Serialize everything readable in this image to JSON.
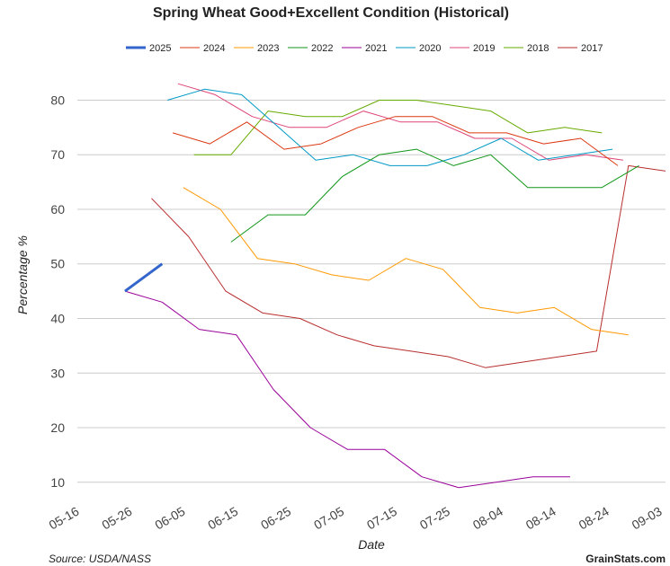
{
  "chart_data": {
    "type": "line",
    "title": "Spring Wheat Good+Excellent Condition (Historical)",
    "xlabel": "Date",
    "ylabel": "Percentage %",
    "ylim": [
      7,
      86
    ],
    "yticks": [
      10,
      20,
      30,
      40,
      50,
      60,
      70,
      80
    ],
    "xlim": [
      0,
      111
    ],
    "xticks": [
      {
        "label": "05-16",
        "day": 0
      },
      {
        "label": "05-26",
        "day": 10
      },
      {
        "label": "06-05",
        "day": 20
      },
      {
        "label": "06-15",
        "day": 30
      },
      {
        "label": "06-25",
        "day": 40
      },
      {
        "label": "07-05",
        "day": 50
      },
      {
        "label": "07-15",
        "day": 60
      },
      {
        "label": "07-25",
        "day": 70
      },
      {
        "label": "08-04",
        "day": 80
      },
      {
        "label": "08-14",
        "day": 90
      },
      {
        "label": "08-24",
        "day": 100
      },
      {
        "label": "09-03",
        "day": 110
      }
    ],
    "x_unit": "days since 05-16",
    "grid": true,
    "legend_position": "top",
    "series": [
      {
        "name": "2025",
        "color": "#3366cc",
        "width": 3,
        "points": [
          [
            9,
            45
          ],
          [
            16,
            50
          ]
        ]
      },
      {
        "name": "2024",
        "color": "#dc3912",
        "width": 1,
        "points": [
          [
            18,
            74
          ],
          [
            25,
            72
          ],
          [
            32,
            76
          ],
          [
            39,
            71
          ],
          [
            46,
            72
          ],
          [
            53,
            75
          ],
          [
            60,
            77
          ],
          [
            67,
            77
          ],
          [
            74,
            74
          ],
          [
            81,
            74
          ],
          [
            88,
            72
          ],
          [
            95,
            73
          ],
          [
            102,
            68
          ]
        ]
      },
      {
        "name": "2023",
        "color": "#ff9900",
        "width": 1,
        "points": [
          [
            20,
            64
          ],
          [
            27,
            60
          ],
          [
            34,
            51
          ],
          [
            41,
            50
          ],
          [
            48,
            48
          ],
          [
            55,
            47
          ],
          [
            62,
            51
          ],
          [
            69,
            49
          ],
          [
            76,
            42
          ],
          [
            83,
            41
          ],
          [
            90,
            42
          ],
          [
            97,
            38
          ],
          [
            104,
            37
          ]
        ]
      },
      {
        "name": "2022",
        "color": "#109618",
        "width": 1,
        "points": [
          [
            29,
            54
          ],
          [
            36,
            59
          ],
          [
            43,
            59
          ],
          [
            50,
            66
          ],
          [
            57,
            70
          ],
          [
            64,
            71
          ],
          [
            71,
            68
          ],
          [
            78,
            70
          ],
          [
            85,
            64
          ],
          [
            92,
            64
          ],
          [
            99,
            64
          ],
          [
            106,
            68
          ]
        ]
      },
      {
        "name": "2021",
        "color": "#990099",
        "width": 1,
        "points": [
          [
            9,
            45
          ],
          [
            16,
            43
          ],
          [
            23,
            38
          ],
          [
            30,
            37
          ],
          [
            37,
            27
          ],
          [
            44,
            20
          ],
          [
            51,
            16
          ],
          [
            58,
            16
          ],
          [
            65,
            11
          ],
          [
            72,
            9
          ],
          [
            79,
            10
          ],
          [
            86,
            11
          ],
          [
            93,
            11
          ]
        ]
      },
      {
        "name": "2020",
        "color": "#0099c6",
        "width": 1,
        "points": [
          [
            17,
            80
          ],
          [
            24,
            82
          ],
          [
            31,
            81
          ],
          [
            38,
            75
          ],
          [
            45,
            69
          ],
          [
            52,
            70
          ],
          [
            59,
            68
          ],
          [
            66,
            68
          ],
          [
            73,
            70
          ],
          [
            80,
            73
          ],
          [
            87,
            69
          ],
          [
            94,
            70
          ],
          [
            101,
            71
          ]
        ]
      },
      {
        "name": "2019",
        "color": "#dd4477",
        "width": 1,
        "points": [
          [
            19,
            83
          ],
          [
            26,
            81
          ],
          [
            33,
            77
          ],
          [
            40,
            75
          ],
          [
            47,
            75
          ],
          [
            54,
            78
          ],
          [
            61,
            76
          ],
          [
            68,
            76
          ],
          [
            75,
            73
          ],
          [
            82,
            73
          ],
          [
            89,
            69
          ],
          [
            96,
            70
          ],
          [
            103,
            69
          ]
        ]
      },
      {
        "name": "2018",
        "color": "#66aa00",
        "width": 1,
        "points": [
          [
            22,
            70
          ],
          [
            29,
            70
          ],
          [
            36,
            78
          ],
          [
            43,
            77
          ],
          [
            50,
            77
          ],
          [
            57,
            80
          ],
          [
            64,
            80
          ],
          [
            71,
            79
          ],
          [
            78,
            78
          ],
          [
            85,
            74
          ],
          [
            92,
            75
          ],
          [
            99,
            74
          ]
        ]
      },
      {
        "name": "2017",
        "color": "#b82e2e",
        "width": 1,
        "points": [
          [
            14,
            62
          ],
          [
            21,
            55
          ],
          [
            28,
            45
          ],
          [
            35,
            41
          ],
          [
            42,
            40
          ],
          [
            49,
            37
          ],
          [
            56,
            35
          ],
          [
            63,
            34
          ],
          [
            70,
            33
          ],
          [
            77,
            31
          ],
          [
            84,
            32
          ],
          [
            91,
            33
          ],
          [
            98,
            34
          ],
          [
            104,
            68
          ],
          [
            111,
            67
          ]
        ]
      }
    ]
  },
  "footer": {
    "source": "Source: USDA/NASS",
    "brand": "GrainStats.com"
  }
}
